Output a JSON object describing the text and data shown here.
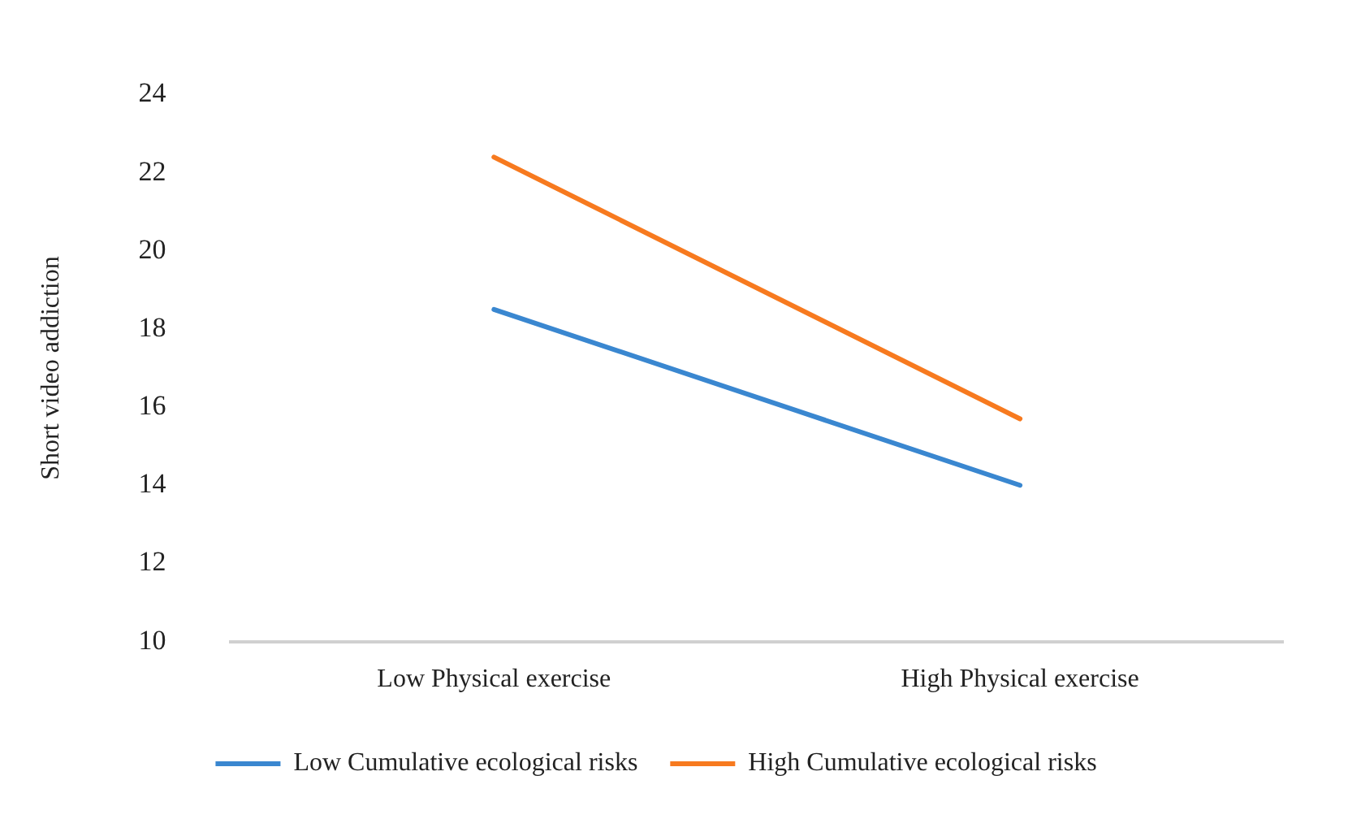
{
  "chart_data": {
    "type": "line",
    "ylabel": "Short video addiction",
    "categories": [
      "Low Physical exercise",
      "High Physical exercise"
    ],
    "series": [
      {
        "name": "Low Cumulative ecological risks",
        "color": "#3a87d0",
        "values": [
          18.5,
          14.0
        ]
      },
      {
        "name": "High Cumulative ecological risks",
        "color": "#f77a1f",
        "values": [
          22.4,
          15.7
        ]
      }
    ],
    "ylim": [
      10,
      24
    ],
    "yticks": [
      10,
      12,
      14,
      16,
      18,
      20,
      22,
      24
    ],
    "grid": false,
    "legend": "bottom",
    "marker": "none",
    "line_style": "solid"
  }
}
